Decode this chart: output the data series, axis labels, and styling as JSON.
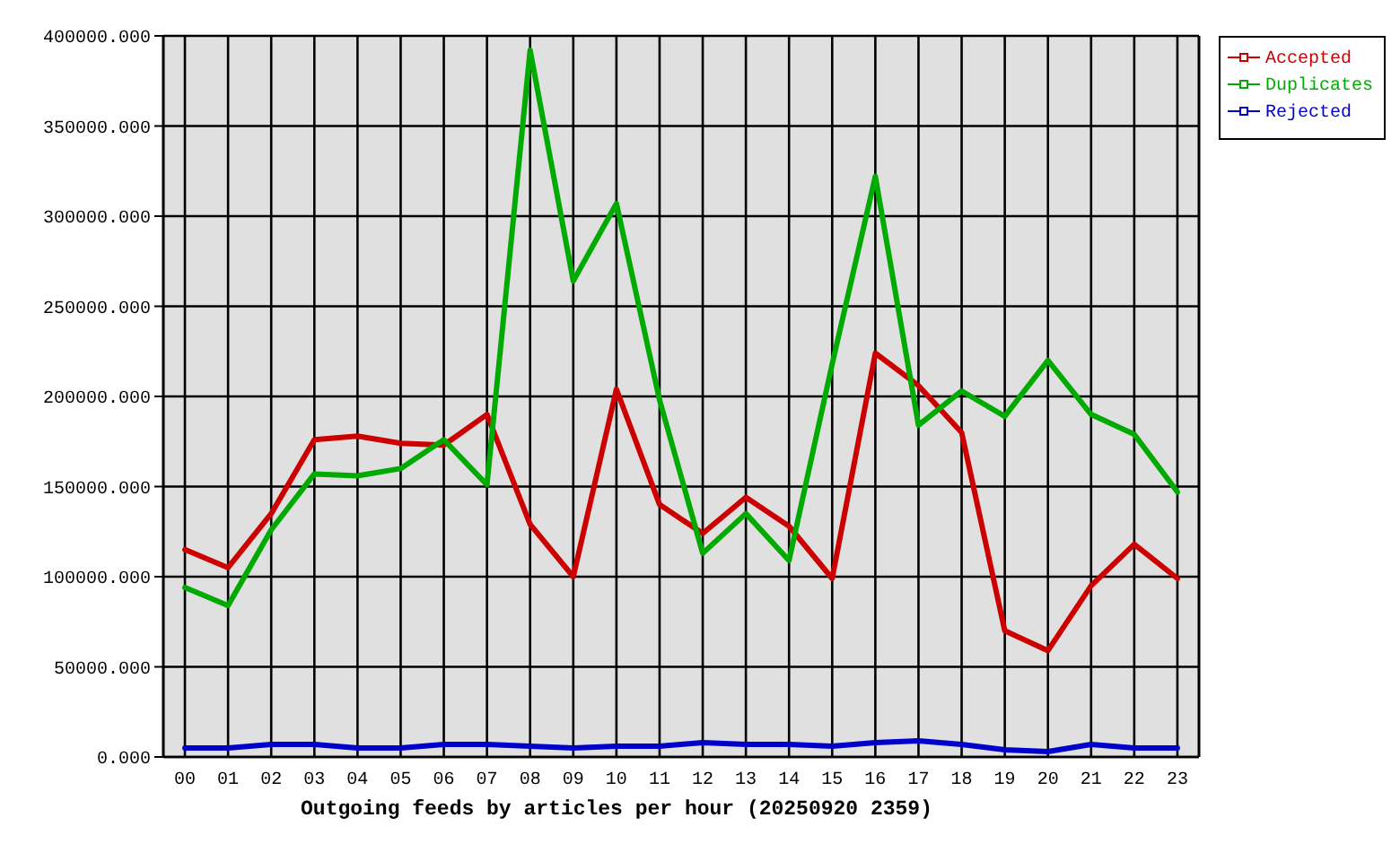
{
  "chart_data": {
    "type": "line",
    "xlabel": "Outgoing feeds by articles per hour (20250920 2359)",
    "categories": [
      "00",
      "01",
      "02",
      "03",
      "04",
      "05",
      "06",
      "07",
      "08",
      "09",
      "10",
      "11",
      "12",
      "13",
      "14",
      "15",
      "16",
      "17",
      "18",
      "19",
      "20",
      "21",
      "22",
      "23"
    ],
    "series": [
      {
        "name": "Accepted",
        "color": "#cc0000",
        "values": [
          115000,
          105000,
          135000,
          176000,
          178000,
          174000,
          173000,
          190000,
          129000,
          100000,
          204000,
          140000,
          124000,
          144000,
          128000,
          99000,
          224000,
          206000,
          180000,
          70000,
          59000,
          95000,
          118000,
          99000
        ]
      },
      {
        "name": "Duplicates",
        "color": "#00aa00",
        "values": [
          94000,
          84000,
          126000,
          157000,
          156000,
          160000,
          176000,
          151000,
          392000,
          264000,
          307000,
          198000,
          113000,
          135000,
          109000,
          218000,
          322000,
          184000,
          203000,
          189000,
          220000,
          190000,
          179000,
          147000
        ]
      },
      {
        "name": "Rejected",
        "color": "#0000cc",
        "values": [
          5000,
          5000,
          7000,
          7000,
          5000,
          5000,
          7000,
          7000,
          6000,
          5000,
          6000,
          6000,
          8000,
          7000,
          7000,
          6000,
          8000,
          9000,
          7000,
          4000,
          3000,
          7000,
          5000,
          5000
        ]
      }
    ],
    "ylim": [
      0,
      400000
    ],
    "yticks": [
      {
        "value": 0,
        "label": "0.000"
      },
      {
        "value": 50000,
        "label": "50000.000"
      },
      {
        "value": 100000,
        "label": "100000.000"
      },
      {
        "value": 150000,
        "label": "150000.000"
      },
      {
        "value": 200000,
        "label": "200000.000"
      },
      {
        "value": 250000,
        "label": "250000.000"
      },
      {
        "value": 300000,
        "label": "300000.000"
      },
      {
        "value": 350000,
        "label": "350000.000"
      },
      {
        "value": 400000,
        "label": "400000.000"
      }
    ],
    "grid": true,
    "legend": "top right",
    "marker": "none",
    "line_style": "solid"
  }
}
